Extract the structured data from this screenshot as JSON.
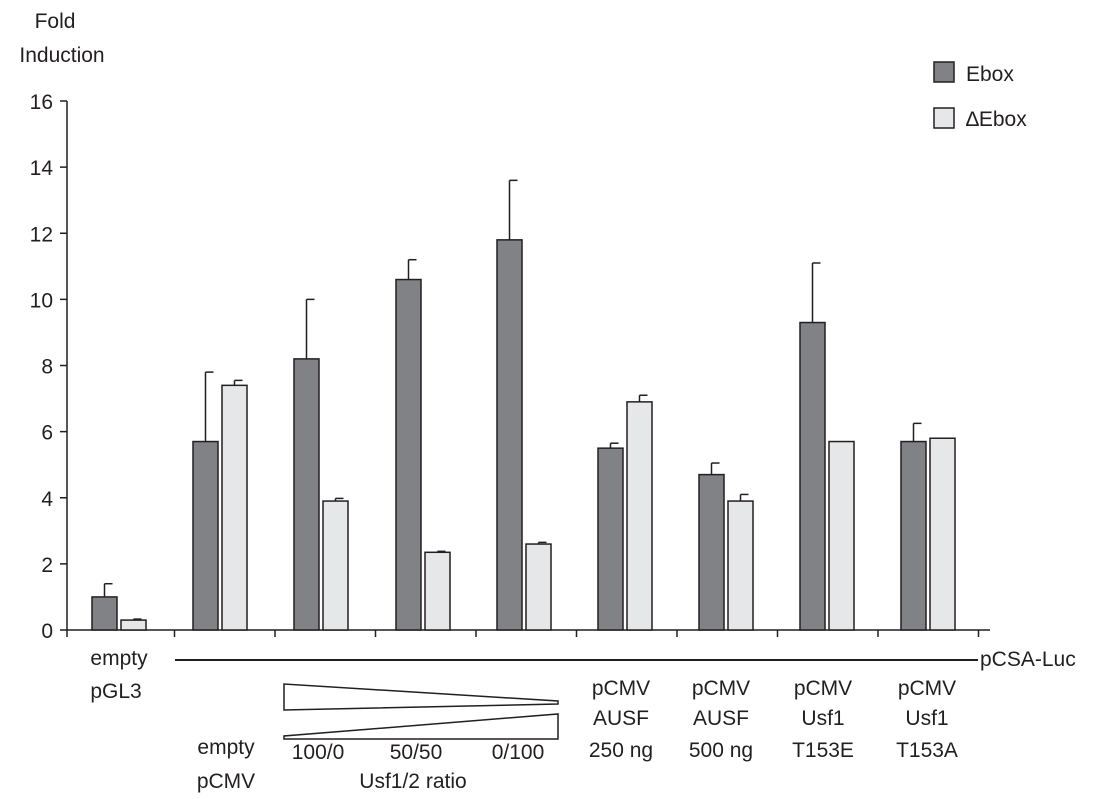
{
  "chart_data": {
    "type": "bar",
    "ylabel": "Fold\nInduction",
    "yticks": [
      "0",
      "2",
      "4",
      "6",
      "8",
      "10",
      "12",
      "14",
      "16"
    ],
    "ylim": [
      0,
      16
    ],
    "grid": false,
    "legend_position": "top-right",
    "series": [
      {
        "name": "Ebox",
        "color": "#808285",
        "values": [
          1.0,
          5.7,
          8.2,
          10.6,
          11.8,
          5.5,
          4.7,
          9.3,
          5.7
        ],
        "errors": [
          0.4,
          2.1,
          1.8,
          0.6,
          1.8,
          0.15,
          0.35,
          1.8,
          0.55
        ]
      },
      {
        "name": "∆Ebox",
        "color": "#e6e7e8",
        "values": [
          0.3,
          7.4,
          3.9,
          2.35,
          2.6,
          6.9,
          3.9,
          5.7,
          5.8
        ],
        "errors": [
          0.03,
          0.15,
          0.08,
          0.03,
          0.05,
          0.2,
          0.2,
          0,
          0
        ]
      }
    ],
    "category_labels": {
      "empty_pgl3": [
        "empty",
        "pGL3"
      ],
      "empty_pcmv": [
        "empty",
        "pCMV"
      ],
      "ratio_ticks": [
        "100/0",
        "50/50",
        "0/100"
      ],
      "ratio_title": "Usf1/2 ratio",
      "ausf_250": [
        "pCMV",
        "AUSF",
        "250 ng"
      ],
      "ausf_500": [
        "pCMV",
        "AUSF",
        "500 ng"
      ],
      "t153e": [
        "pCMV",
        "Usf1",
        "T153E"
      ],
      "t153a": [
        "pCMV",
        "Usf1",
        "T153A"
      ]
    },
    "reporter_label": "pCSA-Luc"
  }
}
